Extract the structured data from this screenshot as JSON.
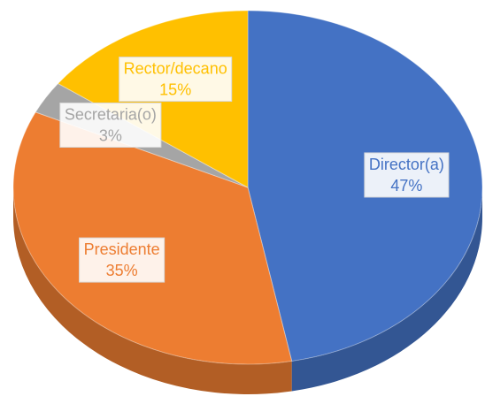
{
  "chart_data": {
    "type": "pie",
    "categories": [
      "Director(a)",
      "Presidente",
      "Secretaria(o)",
      "Rector/decano"
    ],
    "values": [
      47,
      35,
      3,
      15
    ],
    "value_labels": [
      "47%",
      "35%",
      "3%",
      "15%"
    ],
    "colors": [
      "#4472c4",
      "#ed7d31",
      "#a5a5a5",
      "#ffc000"
    ]
  }
}
